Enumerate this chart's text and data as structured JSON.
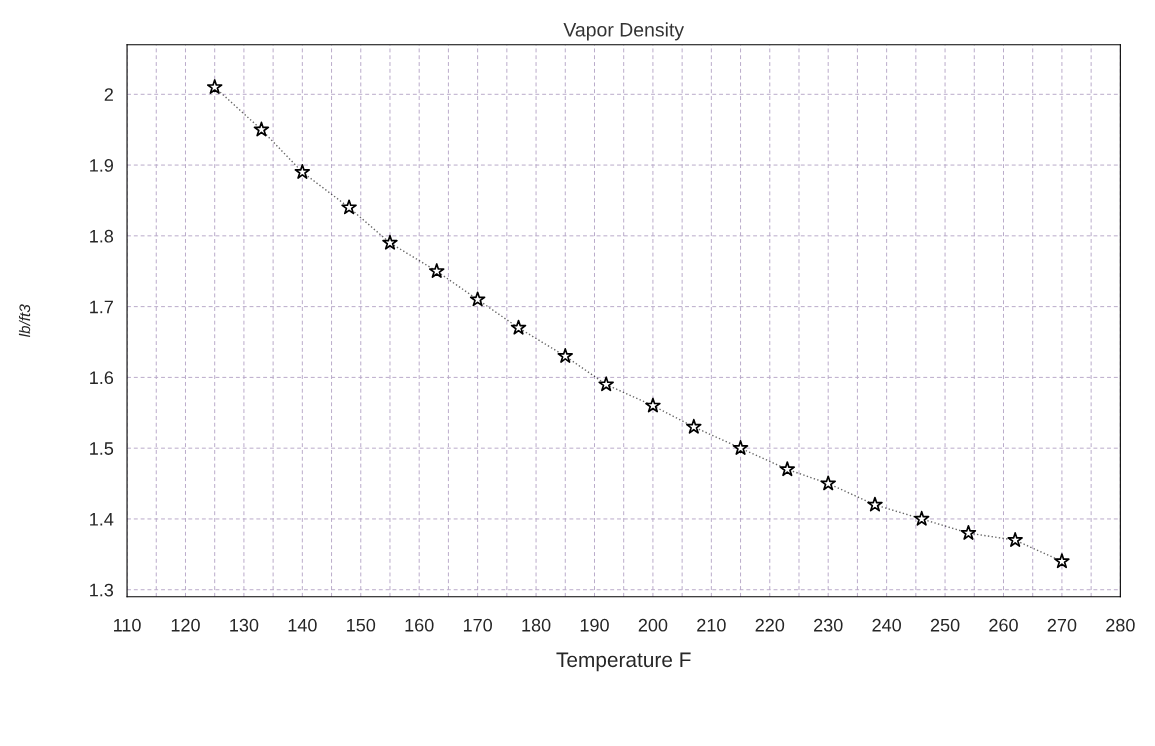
{
  "chart_data": {
    "type": "line",
    "title": "Vapor Density",
    "xlabel": "Temperature F",
    "ylabel": "lb/ft3",
    "x": [
      125,
      133,
      140,
      148,
      155,
      163,
      170,
      177,
      185,
      192,
      200,
      207,
      215,
      223,
      230,
      238,
      246,
      254,
      262,
      270
    ],
    "series": [
      {
        "color": "#000000",
        "values": [
          2.01,
          1.95,
          1.89,
          1.84,
          1.79,
          1.75,
          1.71,
          1.67,
          1.63,
          1.59,
          1.56,
          1.53,
          1.5,
          1.47,
          1.45,
          1.42,
          1.4,
          1.38,
          1.37,
          1.34
        ]
      }
    ],
    "xlim": [
      110,
      280
    ],
    "xticks": [
      110,
      {
        "value": 115,
        "label": null
      },
      120,
      {
        "value": 125,
        "label": null
      },
      130,
      {
        "value": 135,
        "label": null
      },
      140,
      {
        "value": 145,
        "label": null
      },
      150,
      {
        "value": 155,
        "label": null
      },
      160,
      {
        "value": 165,
        "label": null
      },
      170,
      {
        "value": 175,
        "label": null
      },
      180,
      {
        "value": 185,
        "label": null
      },
      190,
      {
        "value": 195,
        "label": null
      },
      200,
      {
        "value": 205,
        "label": null
      },
      210,
      {
        "value": 215,
        "label": null
      },
      220,
      {
        "value": 225,
        "label": null
      },
      230,
      {
        "value": 235,
        "label": null
      },
      240,
      {
        "value": 245,
        "label": null
      },
      250,
      {
        "value": 255,
        "label": null
      },
      260,
      {
        "value": 265,
        "label": null
      },
      270,
      {
        "value": 275,
        "label": null
      },
      280
    ],
    "ylim": [
      1.29,
      2.07
    ],
    "yticks": [
      1.3,
      1.4,
      1.5,
      1.6,
      1.7,
      1.8,
      1.9,
      2
    ],
    "grid": true,
    "marker": "star",
    "line_style": "dotted",
    "legend": false
  }
}
